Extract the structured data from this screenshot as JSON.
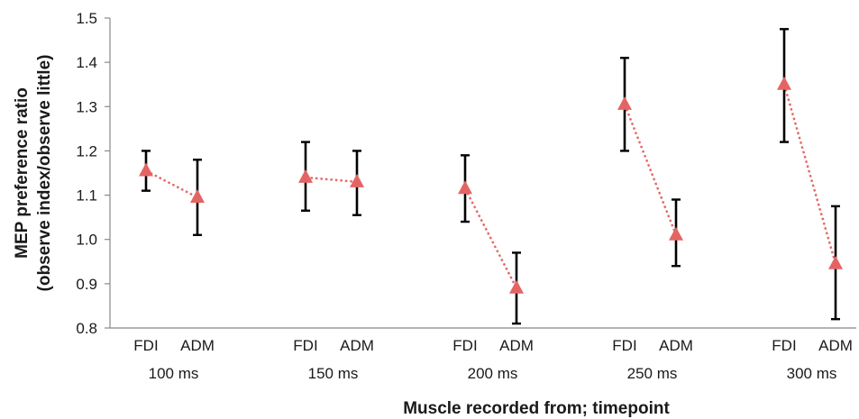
{
  "chart_data": {
    "type": "scatter",
    "xlabel": "Muscle recorded from; timepoint",
    "ylabel_line1": "MEP preference ratio",
    "ylabel_line2": "(observe index/observe little)",
    "ylim": [
      0.8,
      1.5
    ],
    "yticks": [
      "0.8",
      "0.9",
      "1.0",
      "1.1",
      "1.2",
      "1.3",
      "1.4",
      "1.5"
    ],
    "grid": false,
    "groups": [
      {
        "label": "100 ms",
        "points": [
          {
            "muscle": "FDI",
            "value": 1.155,
            "err_low": 1.11,
            "err_high": 1.2
          },
          {
            "muscle": "ADM",
            "value": 1.095,
            "err_low": 1.01,
            "err_high": 1.18
          }
        ]
      },
      {
        "label": "150 ms",
        "points": [
          {
            "muscle": "FDI",
            "value": 1.14,
            "err_low": 1.065,
            "err_high": 1.22
          },
          {
            "muscle": "ADM",
            "value": 1.13,
            "err_low": 1.055,
            "err_high": 1.2
          }
        ]
      },
      {
        "label": "200 ms",
        "points": [
          {
            "muscle": "FDI",
            "value": 1.115,
            "err_low": 1.04,
            "err_high": 1.19
          },
          {
            "muscle": "ADM",
            "value": 0.89,
            "err_low": 0.81,
            "err_high": 0.97
          }
        ]
      },
      {
        "label": "250 ms",
        "points": [
          {
            "muscle": "FDI",
            "value": 1.305,
            "err_low": 1.2,
            "err_high": 1.41
          },
          {
            "muscle": "ADM",
            "value": 1.01,
            "err_low": 0.94,
            "err_high": 1.09
          }
        ]
      },
      {
        "label": "300 ms",
        "points": [
          {
            "muscle": "FDI",
            "value": 1.35,
            "err_low": 1.22,
            "err_high": 1.475
          },
          {
            "muscle": "ADM",
            "value": 0.945,
            "err_low": 0.82,
            "err_high": 1.075
          }
        ]
      }
    ],
    "colors": {
      "marker": "#e46464",
      "connector": "#e46464",
      "errorbar": "#000000",
      "axis": "#888888"
    }
  }
}
